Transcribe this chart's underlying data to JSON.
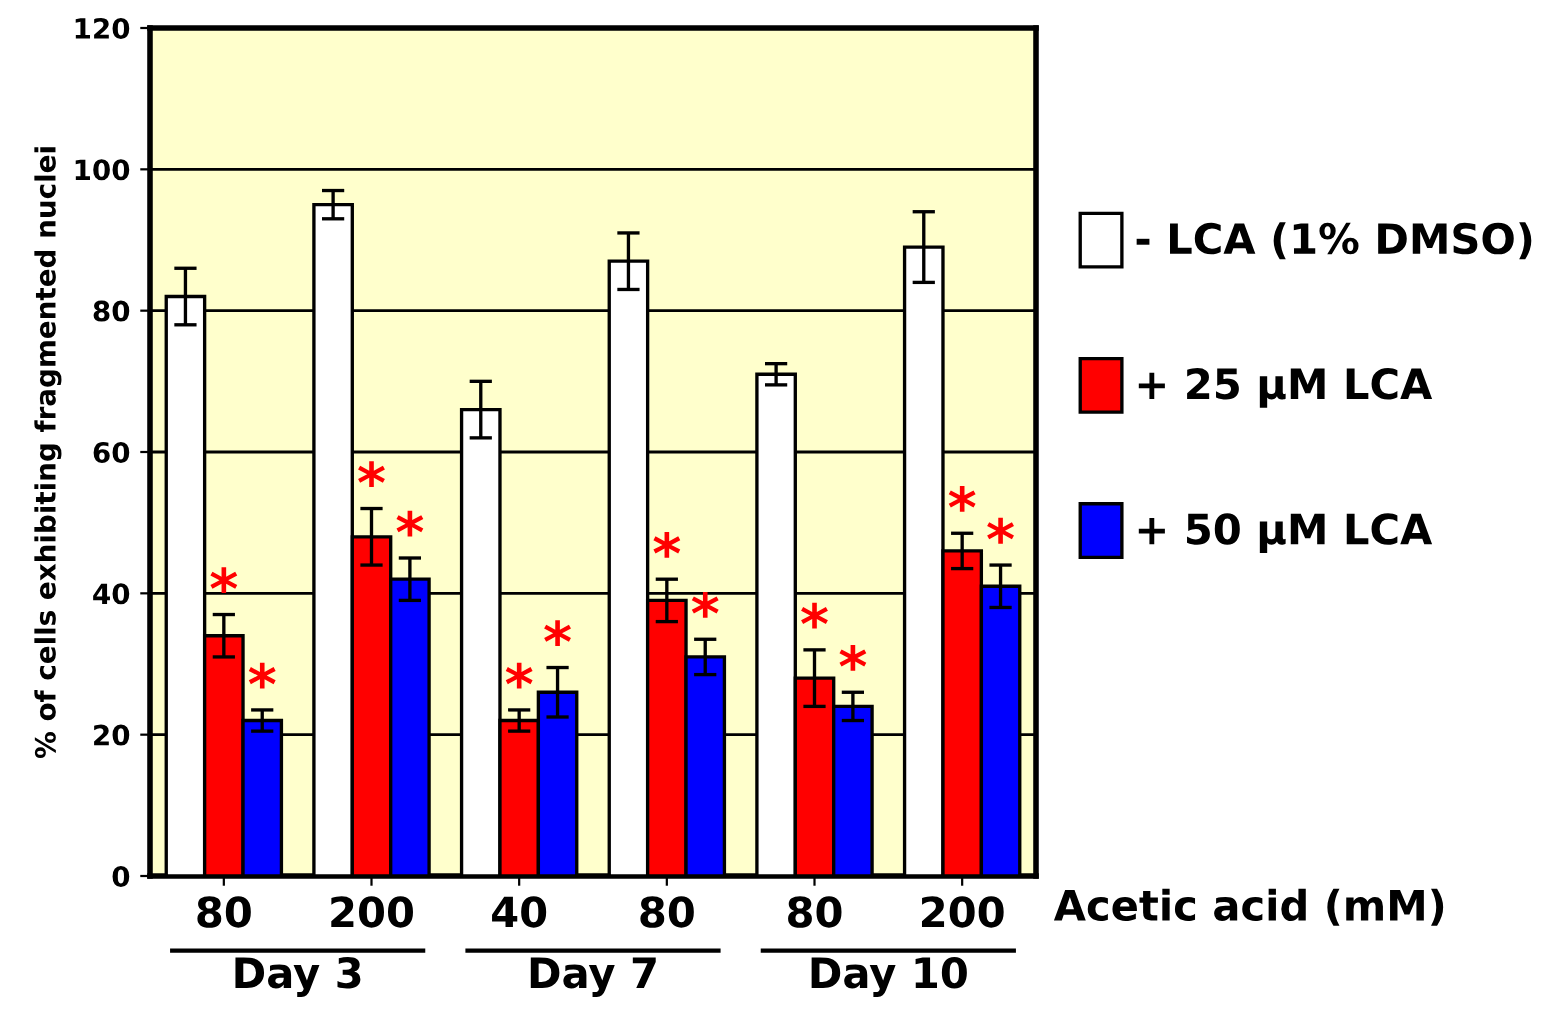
{
  "chart_data": {
    "type": "bar",
    "categories": [
      "80",
      "200",
      "40",
      "80",
      "80",
      "200"
    ],
    "xlabel": "Acetic acid (mM)",
    "ylabel": "% of cells exhibiting fragmented nuclei",
    "annotations": [
      "Day 3",
      "Day 7",
      "Day 10"
    ],
    "series": [
      {
        "name": "- LCA (1% DMSO)",
        "color": "#ffffff",
        "values": [
          82,
          95,
          66,
          87,
          71,
          89
        ],
        "errors": [
          4,
          2,
          4,
          4,
          1.5,
          5
        ]
      },
      {
        "name": "+ 25 µM LCA",
        "color": "#ff0000",
        "values": [
          34,
          48,
          22,
          39,
          28,
          46
        ],
        "errors": [
          3,
          4,
          1.5,
          3,
          4,
          2.5
        ],
        "value_labels": [
          "*",
          "*",
          "*",
          "*",
          "*",
          "*"
        ]
      },
      {
        "name": "+ 50 µM LCA",
        "color": "#0000ff",
        "values": [
          22,
          42,
          26,
          31,
          24,
          41
        ],
        "errors": [
          1.5,
          3,
          3.5,
          2.5,
          2,
          3
        ],
        "value_labels": [
          "*",
          "*",
          "*",
          "*",
          "*",
          "*"
        ]
      }
    ],
    "ylim": [
      0,
      120
    ],
    "yticks": [
      0,
      20,
      40,
      60,
      80,
      100,
      120
    ],
    "grid": "y",
    "legend": "right"
  }
}
